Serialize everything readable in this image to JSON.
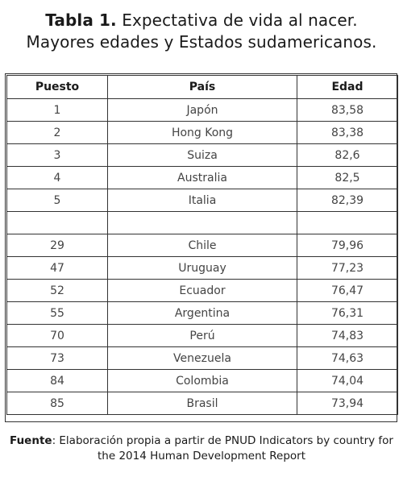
{
  "title": {
    "label": "Tabla 1.",
    "text_line1": "Expectativa de vida al nacer.",
    "text_line2": "Mayores edades y Estados sudamericanos."
  },
  "table": {
    "headers": [
      "Puesto",
      "País",
      "Edad"
    ],
    "rows": [
      [
        "1",
        "Japón",
        "83,58"
      ],
      [
        "2",
        "Hong Kong",
        "83,38"
      ],
      [
        "3",
        "Suiza",
        "82,6"
      ],
      [
        "4",
        "Australia",
        "82,5"
      ],
      [
        "5",
        "Italia",
        "82,39"
      ],
      [
        "",
        "",
        ""
      ],
      [
        "29",
        "Chile",
        "79,96"
      ],
      [
        "47",
        "Uruguay",
        "77,23"
      ],
      [
        "52",
        "Ecuador",
        "76,47"
      ],
      [
        "55",
        "Argentina",
        "76,31"
      ],
      [
        "70",
        "Perú",
        "74,83"
      ],
      [
        "73",
        "Venezuela",
        "74,63"
      ],
      [
        "84",
        "Colombia",
        "74,04"
      ],
      [
        "85",
        "Brasil",
        "73,94"
      ]
    ]
  },
  "source": {
    "label": "Fuente",
    "text_line1": ": Elaboración propia a partir de PNUD Indicators by country for",
    "text_line2": "the 2014 Human Development Report"
  }
}
